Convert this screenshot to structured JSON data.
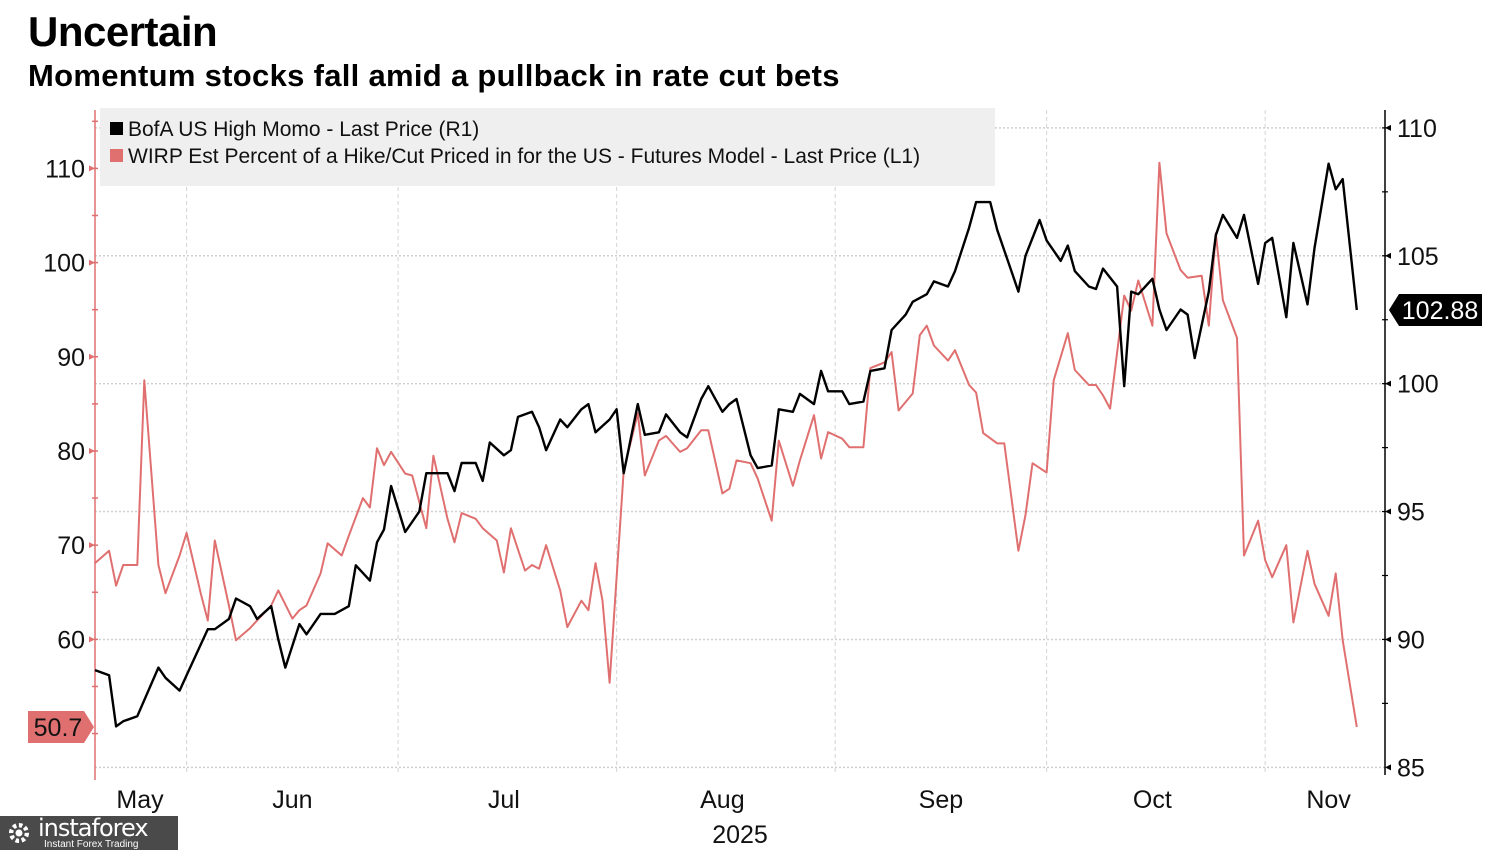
{
  "title": "Uncertain",
  "subtitle": "Momentum stocks fall amid a pullback in rate cut bets",
  "watermark": {
    "name": "instaforex",
    "tagline": "Instant Forex Trading"
  },
  "chart_data": {
    "type": "line",
    "title": "Uncertain",
    "subtitle": "Momentum stocks fall amid a pullback in rate cut bets",
    "x_axis": {
      "type": "date",
      "range": [
        "2025-05-19",
        "2025-11-18"
      ],
      "tick_labels": [
        "May",
        "Jun",
        "Jul",
        "Aug",
        "Sep",
        "Oct",
        "Nov"
      ],
      "tick_dates": [
        "2025-05-04",
        "2025-06-16",
        "2025-07-16",
        "2025-08-16",
        "2025-09-16",
        "2025-10-16",
        "2025-11-10"
      ],
      "gridline_dates": [
        "2025-06-01",
        "2025-07-01",
        "2025-08-01",
        "2025-09-01",
        "2025-10-01",
        "2025-11-01"
      ],
      "year_label": "2025"
    },
    "left_axis": {
      "range": [
        45.6,
        116.2
      ],
      "ticks": [
        60,
        70,
        80,
        90,
        100,
        110
      ],
      "color": "#e07070"
    },
    "right_axis": {
      "range": [
        84.7,
        110.7
      ],
      "ticks": [
        85,
        90,
        95,
        100,
        105,
        110
      ],
      "color": "#000000"
    },
    "grid": true,
    "legend": {
      "placement": "top-left"
    },
    "series": [
      {
        "name": "BofA US High Momo - Last Price (R1)",
        "axis": "right",
        "color": "#000000",
        "last_value_label": "102.88",
        "dates": [
          "2025-05-19",
          "2025-05-21",
          "2025-05-22",
          "2025-05-23",
          "2025-05-25",
          "2025-05-28",
          "2025-05-29",
          "2025-05-31",
          "2025-06-01",
          "2025-06-04",
          "2025-06-05",
          "2025-06-07",
          "2025-06-08",
          "2025-06-10",
          "2025-06-11",
          "2025-06-13",
          "2025-06-14",
          "2025-06-15",
          "2025-06-17",
          "2025-06-18",
          "2025-06-20",
          "2025-06-22",
          "2025-06-24",
          "2025-06-25",
          "2025-06-27",
          "2025-06-28",
          "2025-06-29",
          "2025-06-30",
          "2025-07-02",
          "2025-07-04",
          "2025-07-05",
          "2025-07-08",
          "2025-07-09",
          "2025-07-10",
          "2025-07-12",
          "2025-07-13",
          "2025-07-14",
          "2025-07-16",
          "2025-07-17",
          "2025-07-18",
          "2025-07-20",
          "2025-07-21",
          "2025-07-22",
          "2025-07-24",
          "2025-07-25",
          "2025-07-27",
          "2025-07-28",
          "2025-07-29",
          "2025-07-31",
          "2025-08-01",
          "2025-08-02",
          "2025-08-04",
          "2025-08-05",
          "2025-08-07",
          "2025-08-08",
          "2025-08-10",
          "2025-08-11",
          "2025-08-13",
          "2025-08-14",
          "2025-08-16",
          "2025-08-17",
          "2025-08-18",
          "2025-08-20",
          "2025-08-21",
          "2025-08-23",
          "2025-08-24",
          "2025-08-26",
          "2025-08-27",
          "2025-08-29",
          "2025-08-30",
          "2025-08-31",
          "2025-09-02",
          "2025-09-03",
          "2025-09-05",
          "2025-09-06",
          "2025-09-08",
          "2025-09-09",
          "2025-09-11",
          "2025-09-12",
          "2025-09-14",
          "2025-09-15",
          "2025-09-17",
          "2025-09-18",
          "2025-09-20",
          "2025-09-21",
          "2025-09-23",
          "2025-09-24",
          "2025-09-26",
          "2025-09-27",
          "2025-09-28",
          "2025-09-30",
          "2025-10-01",
          "2025-10-03",
          "2025-10-04",
          "2025-10-05",
          "2025-10-07",
          "2025-10-08",
          "2025-10-09",
          "2025-10-11",
          "2025-10-12",
          "2025-10-13",
          "2025-10-14",
          "2025-10-16",
          "2025-10-17",
          "2025-10-18",
          "2025-10-20",
          "2025-10-21",
          "2025-10-22",
          "2025-10-24",
          "2025-10-25",
          "2025-10-26",
          "2025-10-28",
          "2025-10-29",
          "2025-10-31",
          "2025-11-01",
          "2025-11-02",
          "2025-11-04",
          "2025-11-05",
          "2025-11-07",
          "2025-11-08",
          "2025-11-10",
          "2025-11-11",
          "2025-11-12",
          "2025-11-14"
        ],
        "values": [
          88.8,
          88.6,
          86.6,
          86.8,
          87.0,
          88.9,
          88.5,
          88.0,
          88.6,
          90.4,
          90.4,
          90.8,
          91.6,
          91.3,
          90.8,
          91.3,
          90.0,
          88.9,
          90.6,
          90.2,
          91.0,
          91.0,
          91.3,
          92.9,
          92.3,
          93.8,
          94.3,
          96.0,
          94.2,
          95.0,
          96.5,
          96.5,
          95.8,
          96.9,
          96.9,
          96.2,
          97.7,
          97.2,
          97.4,
          98.7,
          98.9,
          98.3,
          97.4,
          98.6,
          98.3,
          99.0,
          99.2,
          98.1,
          98.6,
          99.0,
          96.5,
          99.2,
          98.0,
          98.1,
          98.8,
          98.1,
          97.9,
          99.4,
          99.9,
          98.9,
          99.2,
          99.4,
          97.2,
          96.7,
          96.8,
          99.0,
          98.9,
          99.6,
          99.2,
          100.5,
          99.7,
          99.7,
          99.2,
          99.3,
          100.5,
          100.6,
          102.1,
          102.7,
          103.2,
          103.5,
          104.0,
          103.8,
          104.4,
          106.1,
          107.1,
          107.1,
          106.0,
          104.4,
          103.6,
          105.0,
          106.4,
          105.6,
          104.8,
          105.4,
          104.4,
          103.8,
          103.7,
          104.5,
          103.8,
          99.9,
          103.6,
          103.5,
          104.1,
          102.9,
          102.1,
          102.9,
          102.7,
          101.0,
          103.6,
          105.8,
          106.6,
          105.7,
          106.6,
          103.9,
          105.5,
          105.7,
          102.6,
          105.5,
          103.1,
          105.3,
          108.6,
          107.6,
          108.0,
          102.88
        ]
      },
      {
        "name": "WIRP Est Percent of a Hike/Cut Priced in for the US - Futures Model - Last Price (L1)",
        "axis": "left",
        "color": "#e07070",
        "last_value_label": "50.7",
        "dates": [
          "2025-05-19",
          "2025-05-21",
          "2025-05-22",
          "2025-05-23",
          "2025-05-25",
          "2025-05-26",
          "2025-05-28",
          "2025-05-29",
          "2025-05-31",
          "2025-06-01",
          "2025-06-03",
          "2025-06-04",
          "2025-06-05",
          "2025-06-07",
          "2025-06-08",
          "2025-06-10",
          "2025-06-11",
          "2025-06-13",
          "2025-06-14",
          "2025-06-16",
          "2025-06-17",
          "2025-06-18",
          "2025-06-20",
          "2025-06-21",
          "2025-06-23",
          "2025-06-24",
          "2025-06-26",
          "2025-06-27",
          "2025-06-28",
          "2025-06-29",
          "2025-06-30",
          "2025-07-02",
          "2025-07-03",
          "2025-07-05",
          "2025-07-06",
          "2025-07-08",
          "2025-07-09",
          "2025-07-10",
          "2025-07-12",
          "2025-07-13",
          "2025-07-15",
          "2025-07-16",
          "2025-07-17",
          "2025-07-19",
          "2025-07-20",
          "2025-07-21",
          "2025-07-22",
          "2025-07-24",
          "2025-07-25",
          "2025-07-27",
          "2025-07-28",
          "2025-07-29",
          "2025-07-30",
          "2025-07-31",
          "2025-08-02",
          "2025-08-04",
          "2025-08-05",
          "2025-08-07",
          "2025-08-08",
          "2025-08-10",
          "2025-08-11",
          "2025-08-13",
          "2025-08-14",
          "2025-08-16",
          "2025-08-17",
          "2025-08-18",
          "2025-08-20",
          "2025-08-21",
          "2025-08-23",
          "2025-08-24",
          "2025-08-26",
          "2025-08-27",
          "2025-08-29",
          "2025-08-30",
          "2025-08-31",
          "2025-09-02",
          "2025-09-03",
          "2025-09-05",
          "2025-09-06",
          "2025-09-08",
          "2025-09-09",
          "2025-09-10",
          "2025-09-12",
          "2025-09-13",
          "2025-09-14",
          "2025-09-15",
          "2025-09-17",
          "2025-09-18",
          "2025-09-20",
          "2025-09-21",
          "2025-09-22",
          "2025-09-24",
          "2025-09-25",
          "2025-09-27",
          "2025-09-28",
          "2025-09-29",
          "2025-10-01",
          "2025-10-02",
          "2025-10-04",
          "2025-10-05",
          "2025-10-07",
          "2025-10-08",
          "2025-10-09",
          "2025-10-10",
          "2025-10-12",
          "2025-10-13",
          "2025-10-14",
          "2025-10-16",
          "2025-10-17",
          "2025-10-18",
          "2025-10-20",
          "2025-10-21",
          "2025-10-23",
          "2025-10-24",
          "2025-10-25",
          "2025-10-26",
          "2025-10-28",
          "2025-10-29",
          "2025-10-31",
          "2025-11-01",
          "2025-11-02",
          "2025-11-04",
          "2025-11-05",
          "2025-11-07",
          "2025-11-08",
          "2025-11-10",
          "2025-11-11",
          "2025-11-12",
          "2025-11-14"
        ],
        "values": [
          68.1,
          69.4,
          65.7,
          67.9,
          67.9,
          87.5,
          67.9,
          64.9,
          68.9,
          71.3,
          64.9,
          62.0,
          70.5,
          63.6,
          59.9,
          61.2,
          62.0,
          63.6,
          65.2,
          62.2,
          63.1,
          63.6,
          67.0,
          70.2,
          68.9,
          71.0,
          75.0,
          74.0,
          80.3,
          78.5,
          79.9,
          77.6,
          77.4,
          71.8,
          79.5,
          72.8,
          70.3,
          73.4,
          72.8,
          71.8,
          70.5,
          67.1,
          71.8,
          67.3,
          67.9,
          67.5,
          70.0,
          65.2,
          61.3,
          64.1,
          63.1,
          68.1,
          64.1,
          55.4,
          77.9,
          84.0,
          77.4,
          81.1,
          81.6,
          79.9,
          80.3,
          82.2,
          82.2,
          75.5,
          76.0,
          79.0,
          78.7,
          77.1,
          72.6,
          81.1,
          76.3,
          79.0,
          83.8,
          79.2,
          82.0,
          81.3,
          80.4,
          80.4,
          88.8,
          89.4,
          90.5,
          84.3,
          86.1,
          92.3,
          93.3,
          91.2,
          89.6,
          90.7,
          87.0,
          86.2,
          81.9,
          80.8,
          80.8,
          69.4,
          73.2,
          78.7,
          77.7,
          87.5,
          92.5,
          88.6,
          87.0,
          87.0,
          85.9,
          84.5,
          96.5,
          94.9,
          98.1,
          93.3,
          110.6,
          103.1,
          99.2,
          98.4,
          98.6,
          93.3,
          103.1,
          96.0,
          92.0,
          68.9,
          72.6,
          68.4,
          66.6,
          70.0,
          61.8,
          69.4,
          65.9,
          62.5,
          67.0,
          59.9,
          50.7
        ]
      }
    ]
  }
}
